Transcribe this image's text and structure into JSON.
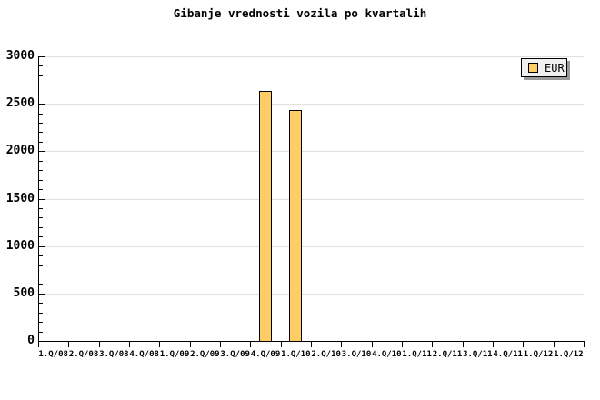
{
  "title": "Gibanje vrednosti vozila po kvartalih",
  "legend": {
    "label": "EUR"
  },
  "colors": {
    "background": "#FFFFFF",
    "bar_fill": "#FFCC66",
    "bar_border": "#000000",
    "gridline": "#E0E0E0",
    "axis": "#000000",
    "legend_bg": "#F0F0F0",
    "legend_shadow": "#999999"
  },
  "chart_data": {
    "type": "bar",
    "title": "Gibanje vrednosti vozila po kvartalih",
    "categories": [
      "1.Q/08",
      "2.Q/08",
      "3.Q/08",
      "4.Q/08",
      "1.Q/09",
      "2.Q/09",
      "3.Q/09",
      "4.Q/09",
      "1.Q/10",
      "2.Q/10",
      "3.Q/10",
      "4.Q/10",
      "1.Q/11",
      "2.Q/11",
      "3.Q/11",
      "4.Q/11",
      "1.Q/12",
      "1.Q/12"
    ],
    "series": [
      {
        "name": "EUR",
        "values": [
          0,
          0,
          0,
          0,
          0,
          0,
          0,
          2635,
          2435,
          0,
          0,
          0,
          0,
          0,
          0,
          0,
          0,
          0
        ]
      }
    ],
    "xlabel": "",
    "ylabel": "",
    "ylim": [
      0,
      3000
    ],
    "y_major_step": 500,
    "y_minor_step": 100,
    "y_tick_labels": [
      "0",
      "500",
      "1000",
      "1500",
      "2000",
      "2500",
      "3000"
    ],
    "grid": true,
    "legend_position": "top-right"
  }
}
